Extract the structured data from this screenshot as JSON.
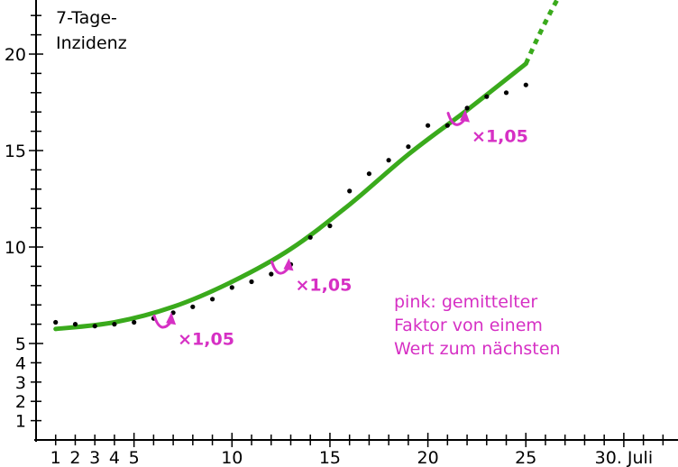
{
  "chart_data": {
    "type": "scatter",
    "title": "7-Tage-Inzidenz",
    "title_lines": [
      "7-Tage-",
      "Inzidenz"
    ],
    "xlabel": "",
    "ylabel": "",
    "xlim": [
      0,
      32
    ],
    "ylim": [
      0,
      25
    ],
    "x_ticks": [
      1,
      2,
      3,
      4,
      5,
      10,
      15,
      20,
      25,
      30
    ],
    "x_tick_labels": [
      "1",
      "2",
      "3",
      "4",
      "5",
      "10",
      "15",
      "20",
      "25",
      "30. Juli"
    ],
    "y_ticks": [
      1,
      2,
      3,
      4,
      5,
      10,
      15,
      20
    ],
    "y_tick_labels": [
      "1",
      "2",
      "3",
      "4",
      "5",
      "10",
      "15",
      "20"
    ],
    "grid": false,
    "series": [
      {
        "kind": "points",
        "color": "#000000",
        "x": [
          1,
          2,
          3,
          4,
          5,
          6,
          7,
          8,
          9,
          10,
          11,
          12,
          13,
          14,
          15,
          16,
          17,
          18,
          19,
          20,
          21,
          22,
          23,
          24,
          25
        ],
        "y": [
          6.1,
          6.0,
          5.9,
          6.0,
          6.1,
          6.3,
          6.6,
          6.9,
          7.3,
          7.9,
          8.2,
          8.6,
          9.1,
          10.5,
          11.1,
          12.9,
          13.8,
          14.5,
          15.2,
          16.3,
          16.3,
          17.2,
          17.8,
          18.0,
          18.4
        ]
      },
      {
        "kind": "curve",
        "color": "#3aaa1c",
        "x": [
          1,
          4,
          7,
          10,
          13,
          16,
          19,
          22,
          25
        ],
        "y": [
          5.75,
          6.1,
          6.9,
          8.2,
          9.9,
          12.2,
          14.8,
          17.1,
          19.5
        ],
        "extension_dotted": {
          "x": [
            25,
            28
          ],
          "y": [
            19.5,
            25.2
          ]
        }
      }
    ],
    "annotations": [
      {
        "text": "×1,05",
        "x": 7,
        "y": 5.5
      },
      {
        "text": "×1,05",
        "x": 13,
        "y": 8.3
      },
      {
        "text": "×1,05",
        "x": 22,
        "y": 16.0
      }
    ],
    "note": [
      "pink: gemittelter",
      "Faktor von einem",
      "Wert zum nächsten"
    ],
    "colors": {
      "points": "#000000",
      "curve": "#3aaa1c",
      "annotation": "#d630c4"
    }
  }
}
